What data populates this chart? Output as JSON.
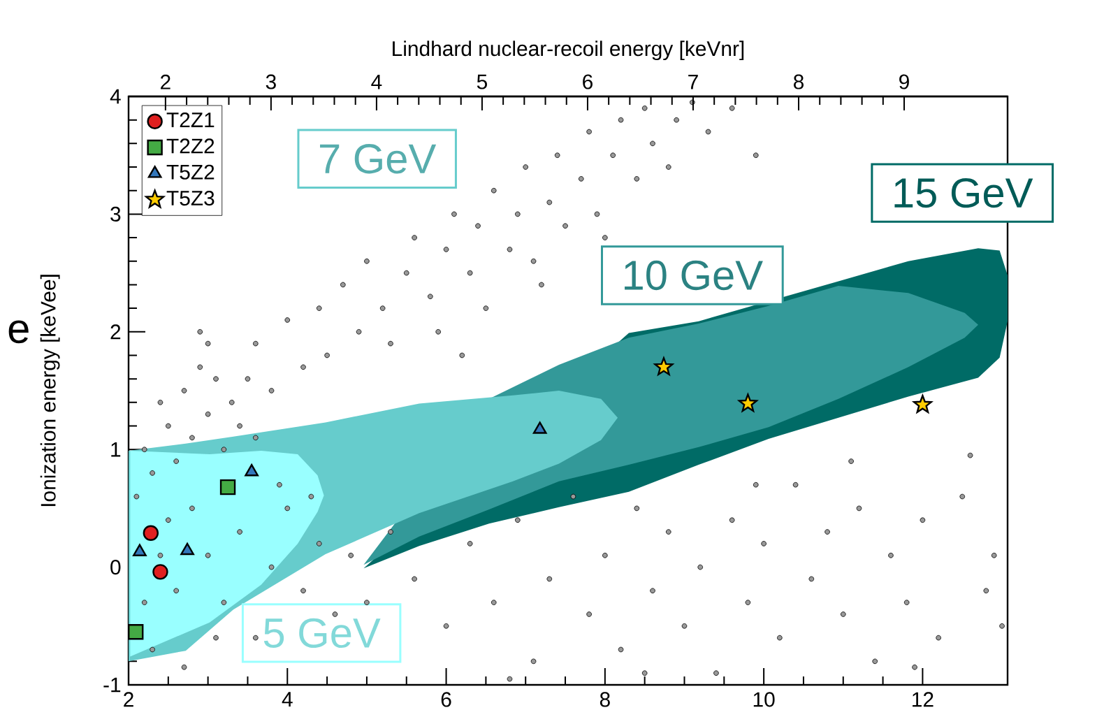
{
  "chart_data": {
    "type": "scatter",
    "x2label": "Lindhard nuclear-recoil energy [keVnr]",
    "ylabel": "Ionization energy [keVee]",
    "annotations": [
      "e"
    ],
    "xlim": [
      2,
      13.07
    ],
    "xticks": [
      2,
      4,
      6,
      8,
      10,
      12
    ],
    "x2lim": [
      1.65,
      9.98
    ],
    "x2ticks": [
      2,
      3,
      4,
      5,
      6,
      7,
      8,
      9
    ],
    "ylim": [
      -1,
      4
    ],
    "yticks": [
      -1,
      0,
      1,
      2,
      3,
      4
    ],
    "legend": "top left",
    "series": [
      {
        "type": "area",
        "name": "15 GeV",
        "color": "#006b66",
        "x": [
          4.96,
          5.66,
          6.54,
          7.42,
          8.3,
          9.18,
          10.06,
          10.94,
          11.82,
          12.7,
          12.97,
          13.07,
          13.07,
          12.97,
          12.7,
          11.82,
          10.94,
          10.06,
          9.18,
          8.3,
          7.42,
          6.54,
          5.66
        ],
        "values": [
          -0.01,
          null,
          null,
          null,
          1.99,
          2.09,
          null,
          2.43,
          2.6,
          2.71,
          2.69,
          2.48,
          2.09,
          1.78,
          1.61,
          1.45,
          1.27,
          1.09,
          0.87,
          0.64,
          0.51,
          0.37,
          0.18
        ]
      },
      {
        "type": "area",
        "name": "10 GeV",
        "color": "#339999",
        "x": [
          6.54,
          7.42,
          8.3,
          9.18,
          10.06,
          10.94,
          11.82,
          12.53,
          12.7,
          12.53,
          11.82,
          10.94,
          10.06,
          9.18,
          8.3,
          7.42,
          6.54,
          5.66,
          4.96
        ],
        "values": [
          1.43,
          1.72,
          1.95,
          2.07,
          2.22,
          2.39,
          2.33,
          2.16,
          2.06,
          1.95,
          1.7,
          1.43,
          1.19,
          1.02,
          0.87,
          0.73,
          0.49,
          0.26,
          0.02
        ]
      },
      {
        "type": "area",
        "name": "7 GeV",
        "color": "#66cccc",
        "x": [
          2.0,
          2.72,
          3.32,
          4.48,
          5.66,
          6.84,
          7.42,
          7.95,
          8.16,
          7.95,
          7.42,
          6.84,
          5.66,
          4.48,
          3.32,
          2.72,
          2.0
        ],
        "values": [
          0.99,
          1.05,
          1.11,
          1.23,
          1.39,
          1.46,
          1.5,
          1.43,
          1.27,
          1.08,
          0.88,
          0.73,
          0.46,
          0.11,
          -0.36,
          -0.71,
          -0.8
        ]
      },
      {
        "type": "area",
        "name": "5 GeV",
        "color": "#99ffff",
        "x": [
          2.02,
          3.02,
          3.67,
          4.13,
          4.38,
          4.46,
          4.38,
          4.13,
          3.67,
          3.02,
          2.02
        ],
        "values": [
          0.99,
          0.96,
          0.99,
          0.96,
          0.78,
          0.61,
          0.47,
          0.2,
          -0.15,
          -0.47,
          -0.76
        ]
      },
      {
        "color": "#999999",
        "marker": "circle",
        "x": [
          3.6,
          3.8,
          4.0,
          4.2,
          4.4,
          4.5,
          4.7,
          4.9,
          5.0,
          5.2,
          5.3,
          5.5,
          5.6,
          5.8,
          5.9,
          6.0,
          6.1,
          6.3,
          6.4,
          6.5,
          6.6,
          6.8,
          6.9,
          7.0,
          7.1,
          7.3,
          7.4,
          7.5,
          7.7,
          7.8,
          7.9,
          8.1,
          8.2,
          8.4,
          8.5,
          8.6,
          8.8,
          8.9,
          9.1,
          9.3,
          9.6,
          9.9,
          6.2,
          7.2,
          8.0,
          2.5,
          2.7,
          2.8,
          2.9,
          3.0,
          3.1,
          3.2,
          3.3,
          3.0,
          2.6,
          3.4,
          2.4,
          3.5,
          2.2,
          3.6,
          2.9,
          2.1,
          2.3,
          2.5,
          2.6,
          2.8,
          3.0,
          3.2,
          3.4,
          3.6,
          3.8,
          4.0,
          4.2,
          4.4,
          4.6,
          2.3,
          2.7,
          3.1,
          4.8,
          5.0,
          5.3,
          2.2,
          2.4,
          3.9,
          4.3,
          5.6,
          6.0,
          6.3,
          6.6,
          6.9,
          7.1,
          7.3,
          7.6,
          7.8,
          8.0,
          8.2,
          8.4,
          8.6,
          8.8,
          9.0,
          9.2,
          9.4,
          9.6,
          9.8,
          10.0,
          10.2,
          10.4,
          10.6,
          10.8,
          11.0,
          11.2,
          11.4,
          11.6,
          11.8,
          12.0,
          12.2,
          12.5,
          12.8,
          12.9,
          13.0,
          6.8,
          8.5,
          11.9,
          12.6,
          11.1,
          9.9
        ],
        "values": [
          1.9,
          1.5,
          2.1,
          1.7,
          2.2,
          1.8,
          2.4,
          2.0,
          2.6,
          2.2,
          1.9,
          2.5,
          2.8,
          2.3,
          2.0,
          2.7,
          3.0,
          2.5,
          2.9,
          2.2,
          3.2,
          2.7,
          3.0,
          3.4,
          2.6,
          3.1,
          3.5,
          2.9,
          3.3,
          3.7,
          3.0,
          3.5,
          3.8,
          3.3,
          3.9,
          3.6,
          3.4,
          3.8,
          3.95,
          3.7,
          3.9,
          3.5,
          1.8,
          2.4,
          2.8,
          1.2,
          1.5,
          1.1,
          1.7,
          1.3,
          1.6,
          1.0,
          1.4,
          1.9,
          0.9,
          1.2,
          1.4,
          1.6,
          1.0,
          1.1,
          2.0,
          0.6,
          0.8,
          0.4,
          -0.2,
          0.5,
          0.1,
          -0.3,
          0.3,
          -0.6,
          0.0,
          0.5,
          -0.2,
          0.2,
          -0.4,
          -0.7,
          -0.85,
          -0.6,
          0.1,
          -0.3,
          0.3,
          -0.3,
          0.1,
          0.7,
          0.6,
          -0.1,
          -0.5,
          0.2,
          -0.3,
          0.4,
          -0.8,
          -0.1,
          0.6,
          -0.4,
          0.1,
          -0.7,
          0.5,
          -0.2,
          0.3,
          -0.5,
          0.0,
          -0.9,
          0.4,
          -0.3,
          0.2,
          -0.6,
          0.7,
          -0.1,
          0.3,
          -0.4,
          0.5,
          -0.8,
          0.1,
          -0.3,
          0.4,
          -0.6,
          0.6,
          -0.2,
          0.1,
          -0.5,
          -0.95,
          -0.9,
          -0.85,
          0.95,
          0.9,
          0.7
        ]
      },
      {
        "name": "T2Z1",
        "color": "#e02020",
        "marker": "circle",
        "x": [
          2.28,
          2.4
        ],
        "values": [
          0.29,
          -0.04
        ]
      },
      {
        "name": "T2Z2",
        "color": "#44aa44",
        "marker": "square",
        "x": [
          2.09,
          3.25
        ],
        "values": [
          -0.55,
          0.68
        ]
      },
      {
        "name": "T5Z2",
        "color": "#3377bb",
        "marker": "triangle",
        "x": [
          2.14,
          2.74,
          3.55,
          7.18
        ],
        "values": [
          0.13,
          0.14,
          0.81,
          1.17
        ]
      },
      {
        "name": "T5Z3",
        "color": "#ffcc00",
        "marker": "star",
        "x": [
          8.74,
          9.8,
          12.0
        ],
        "values": [
          1.7,
          1.39,
          1.38
        ]
      }
    ]
  }
}
